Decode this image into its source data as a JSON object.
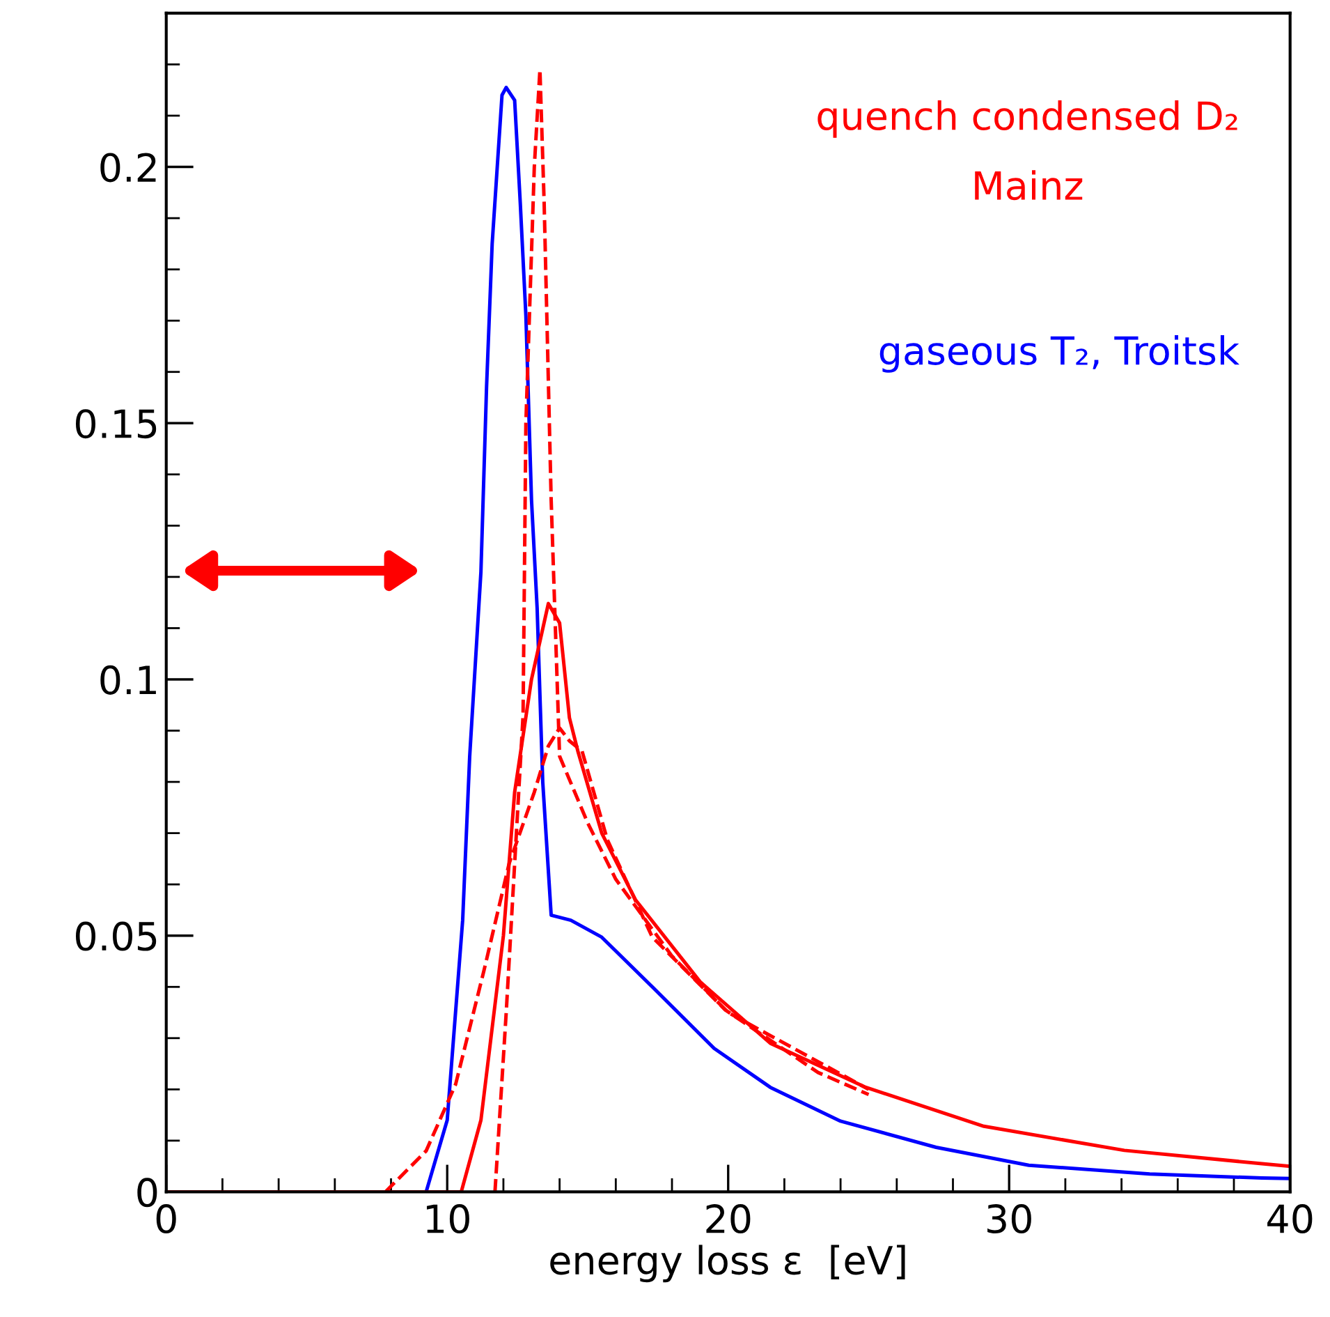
{
  "chart_data": {
    "type": "line",
    "xlabel": "energy loss ε  [eV]",
    "xlim": [
      0,
      40
    ],
    "xticks": [
      0,
      10,
      20,
      30,
      40
    ],
    "ylim": [
      0,
      0.23
    ],
    "yticks": [
      0,
      0.05,
      0.1,
      0.15,
      0.2
    ],
    "grid": false,
    "legend": false,
    "marker": "none",
    "series": [
      {
        "name": "gaseous T₂, Troitsk",
        "color": "#0000ff",
        "line_style": "solid",
        "x": [
          0,
          9.25,
          10,
          10.55,
          10.8,
          11.2,
          11.4,
          11.6,
          11.95,
          12.1,
          12.4,
          12.6,
          12.8,
          13.0,
          13.2,
          13.4,
          13.7,
          14.4,
          15.5,
          17.3,
          19.5,
          21.5,
          24.0,
          27.4,
          30.7,
          35,
          39,
          40
        ],
        "values": [
          0,
          0,
          0.014,
          0.053,
          0.085,
          0.121,
          0.157,
          0.185,
          0.214,
          0.2155,
          0.213,
          0.193,
          0.171,
          0.135,
          0.114,
          0.08,
          0.054,
          0.053,
          0.0497,
          0.04,
          0.028,
          0.0204,
          0.0138,
          0.0087,
          0.0052,
          0.0035,
          0.0027,
          0.0026
        ]
      },
      {
        "name": "quench condensed D₂\nMainz",
        "color": "#ff0000",
        "line_style": "solid",
        "x": [
          0,
          10.5,
          11.2,
          12,
          12.4,
          13,
          13.6,
          14,
          14.35,
          14.65,
          15.5,
          16.7,
          19.0,
          21.5,
          24.9,
          29.1,
          34.1,
          39,
          40
        ],
        "values": [
          0,
          0,
          0.014,
          0.05,
          0.078,
          0.1,
          0.1148,
          0.111,
          0.0925,
          0.086,
          0.07,
          0.057,
          0.041,
          0.029,
          0.0204,
          0.0128,
          0.0081,
          0.0055,
          0.005
        ]
      },
      {
        "color": "#ff0000",
        "line_style": "dashed",
        "x": [
          11.7,
          12.1,
          12.7,
          12.8,
          13.1,
          13.3,
          13.45,
          13.7,
          14.0,
          15,
          16,
          18,
          20,
          25
        ],
        "values": [
          0,
          0.035,
          0.093,
          0.15,
          0.2,
          0.219,
          0.193,
          0.135,
          0.085,
          0.072,
          0.061,
          0.046,
          0.035,
          0.02
        ]
      },
      {
        "color": "#ff0000",
        "line_style": "dashed",
        "x": [
          7.8,
          9.25,
          10.3,
          11.3,
          12.2,
          13.1,
          13.6,
          14.0,
          14.35,
          14.8,
          15.7,
          17.3,
          19.9,
          23.2,
          25
        ],
        "values": [
          0,
          0.008,
          0.021,
          0.043,
          0.064,
          0.078,
          0.087,
          0.0905,
          0.088,
          0.086,
          0.0687,
          0.0497,
          0.0355,
          0.0233,
          0.019
        ]
      }
    ]
  }
}
